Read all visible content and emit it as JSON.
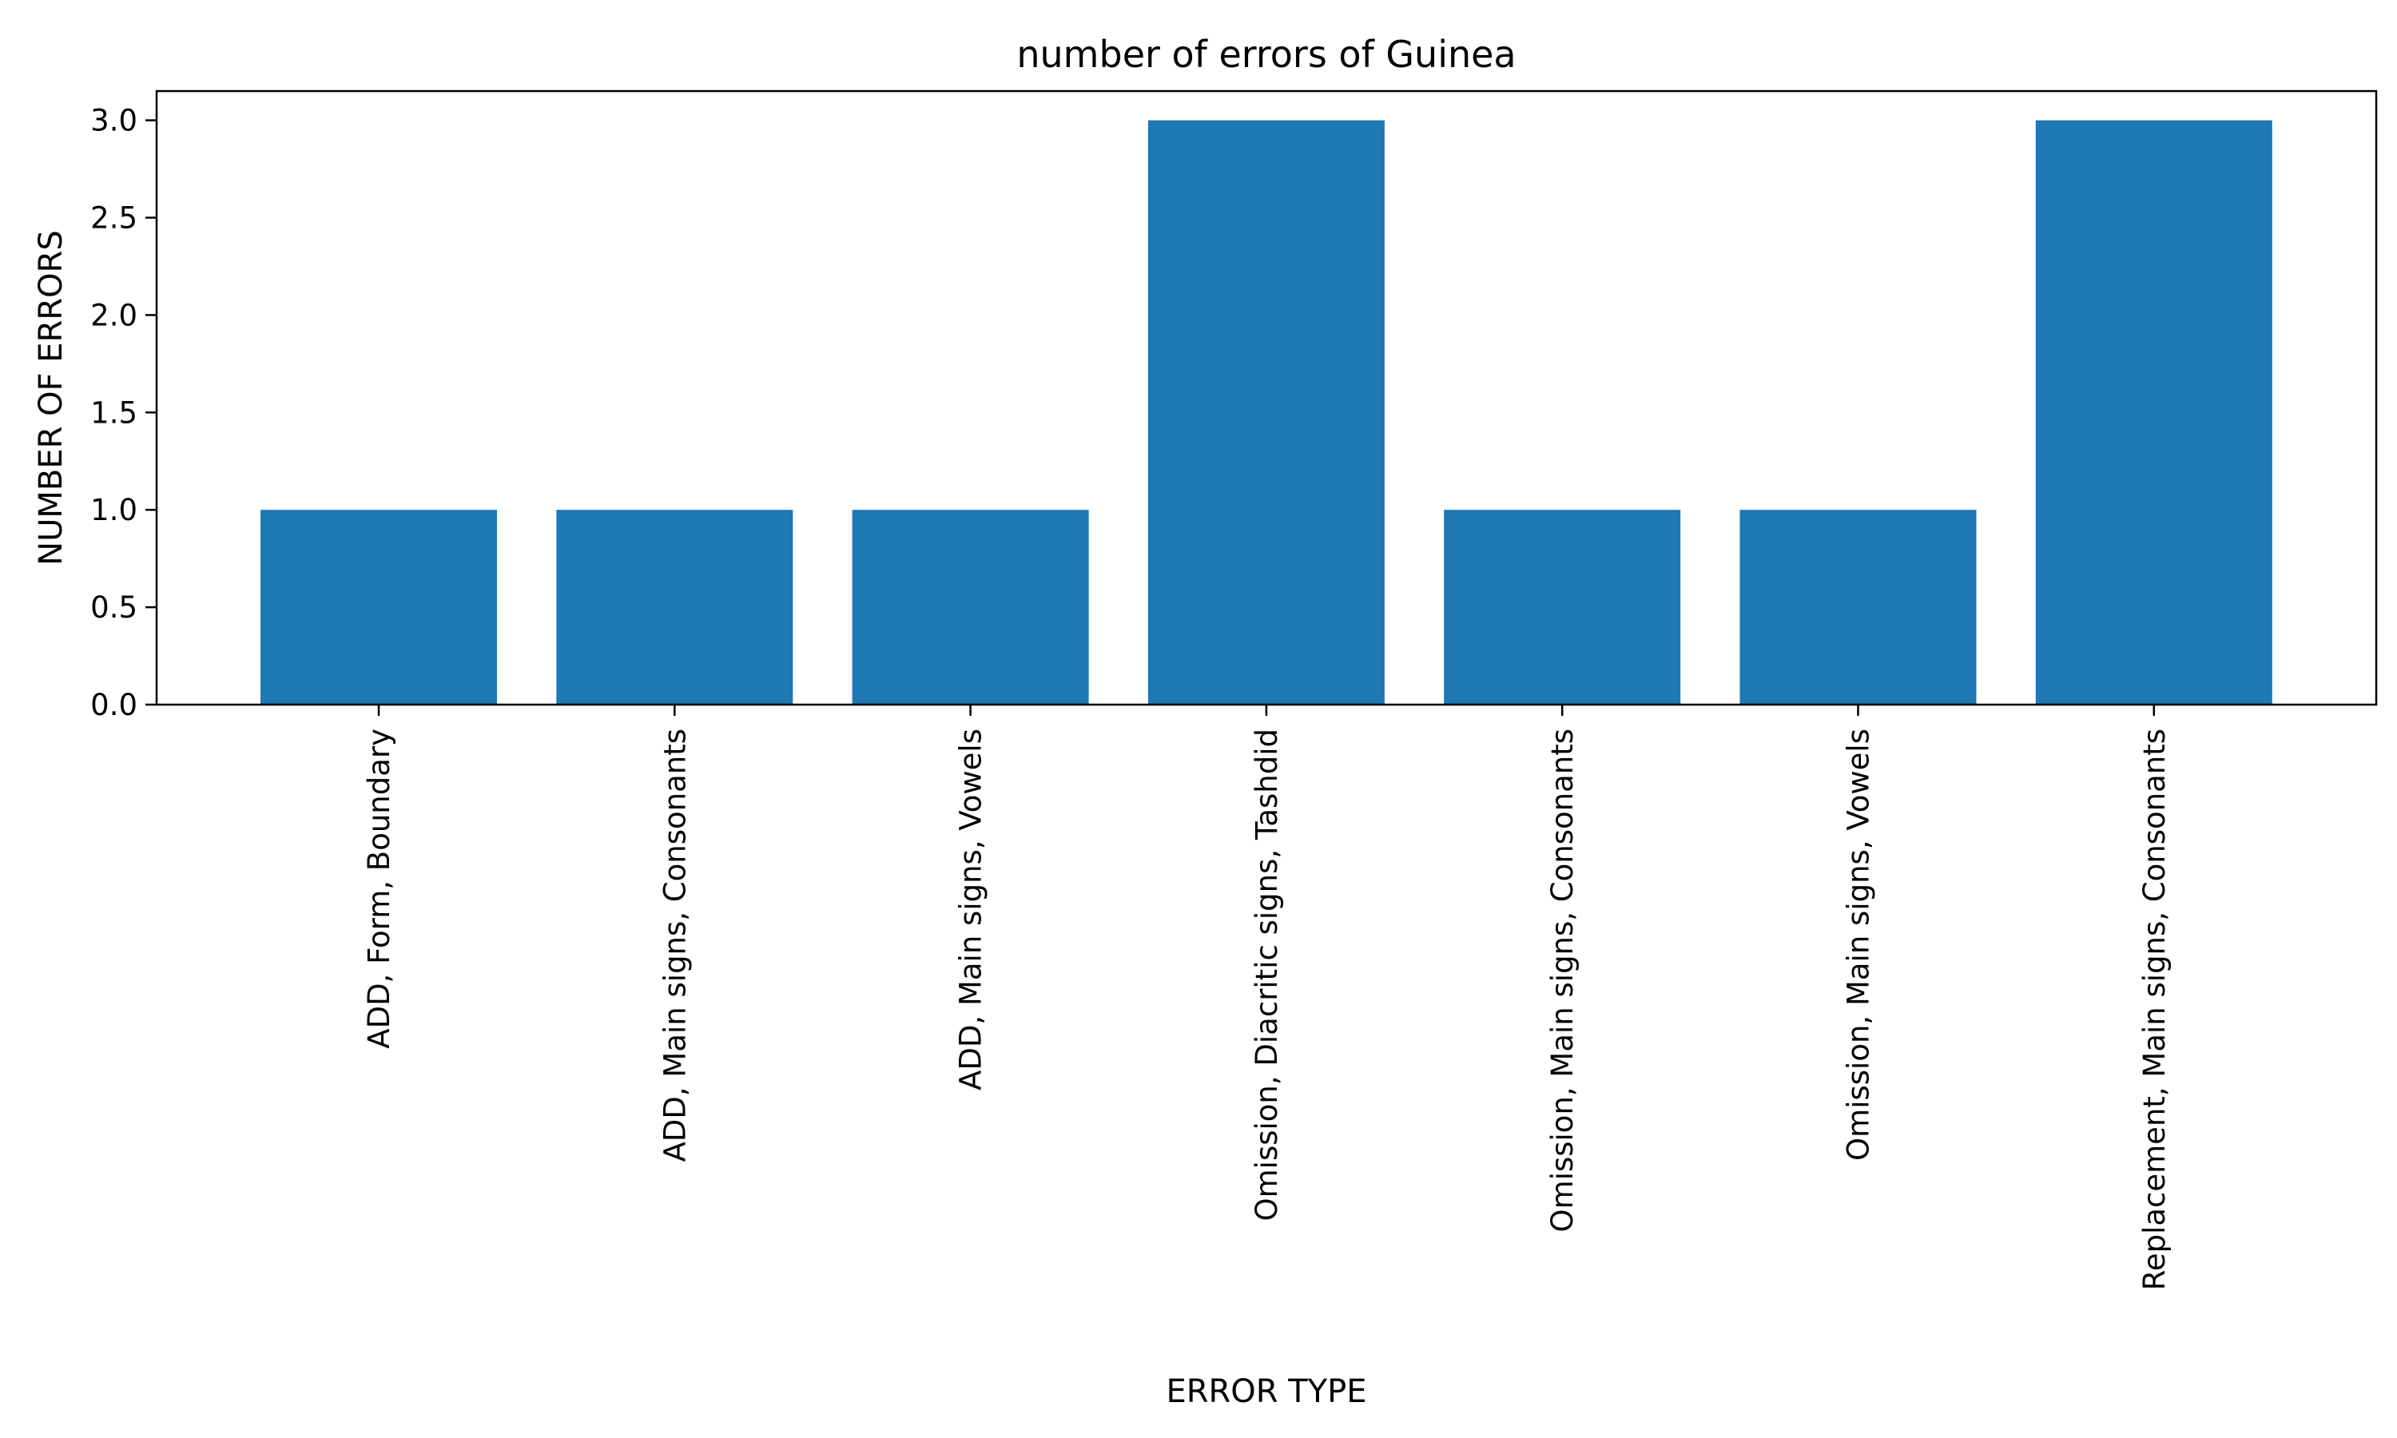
{
  "chart_data": {
    "type": "bar",
    "title": "number of errors of Guinea",
    "xlabel": "ERROR TYPE",
    "ylabel": "NUMBER OF ERRORS",
    "categories": [
      "ADD, Form, Boundary",
      "ADD, Main signs, Consonants",
      "ADD, Main signs, Vowels",
      "Omission, Diacritic signs, Tashdid",
      "Omission, Main signs, Consonants",
      "Omission, Main signs, Vowels",
      "Replacement, Main signs, Consonants"
    ],
    "values": [
      1,
      1,
      1,
      3,
      1,
      1,
      3
    ],
    "ylim": [
      0,
      3.15
    ],
    "yticks": [
      "0.0",
      "0.5",
      "1.0",
      "1.5",
      "2.0",
      "2.5",
      "3.0"
    ],
    "grid": false,
    "bar_color": "#1f77b4"
  }
}
